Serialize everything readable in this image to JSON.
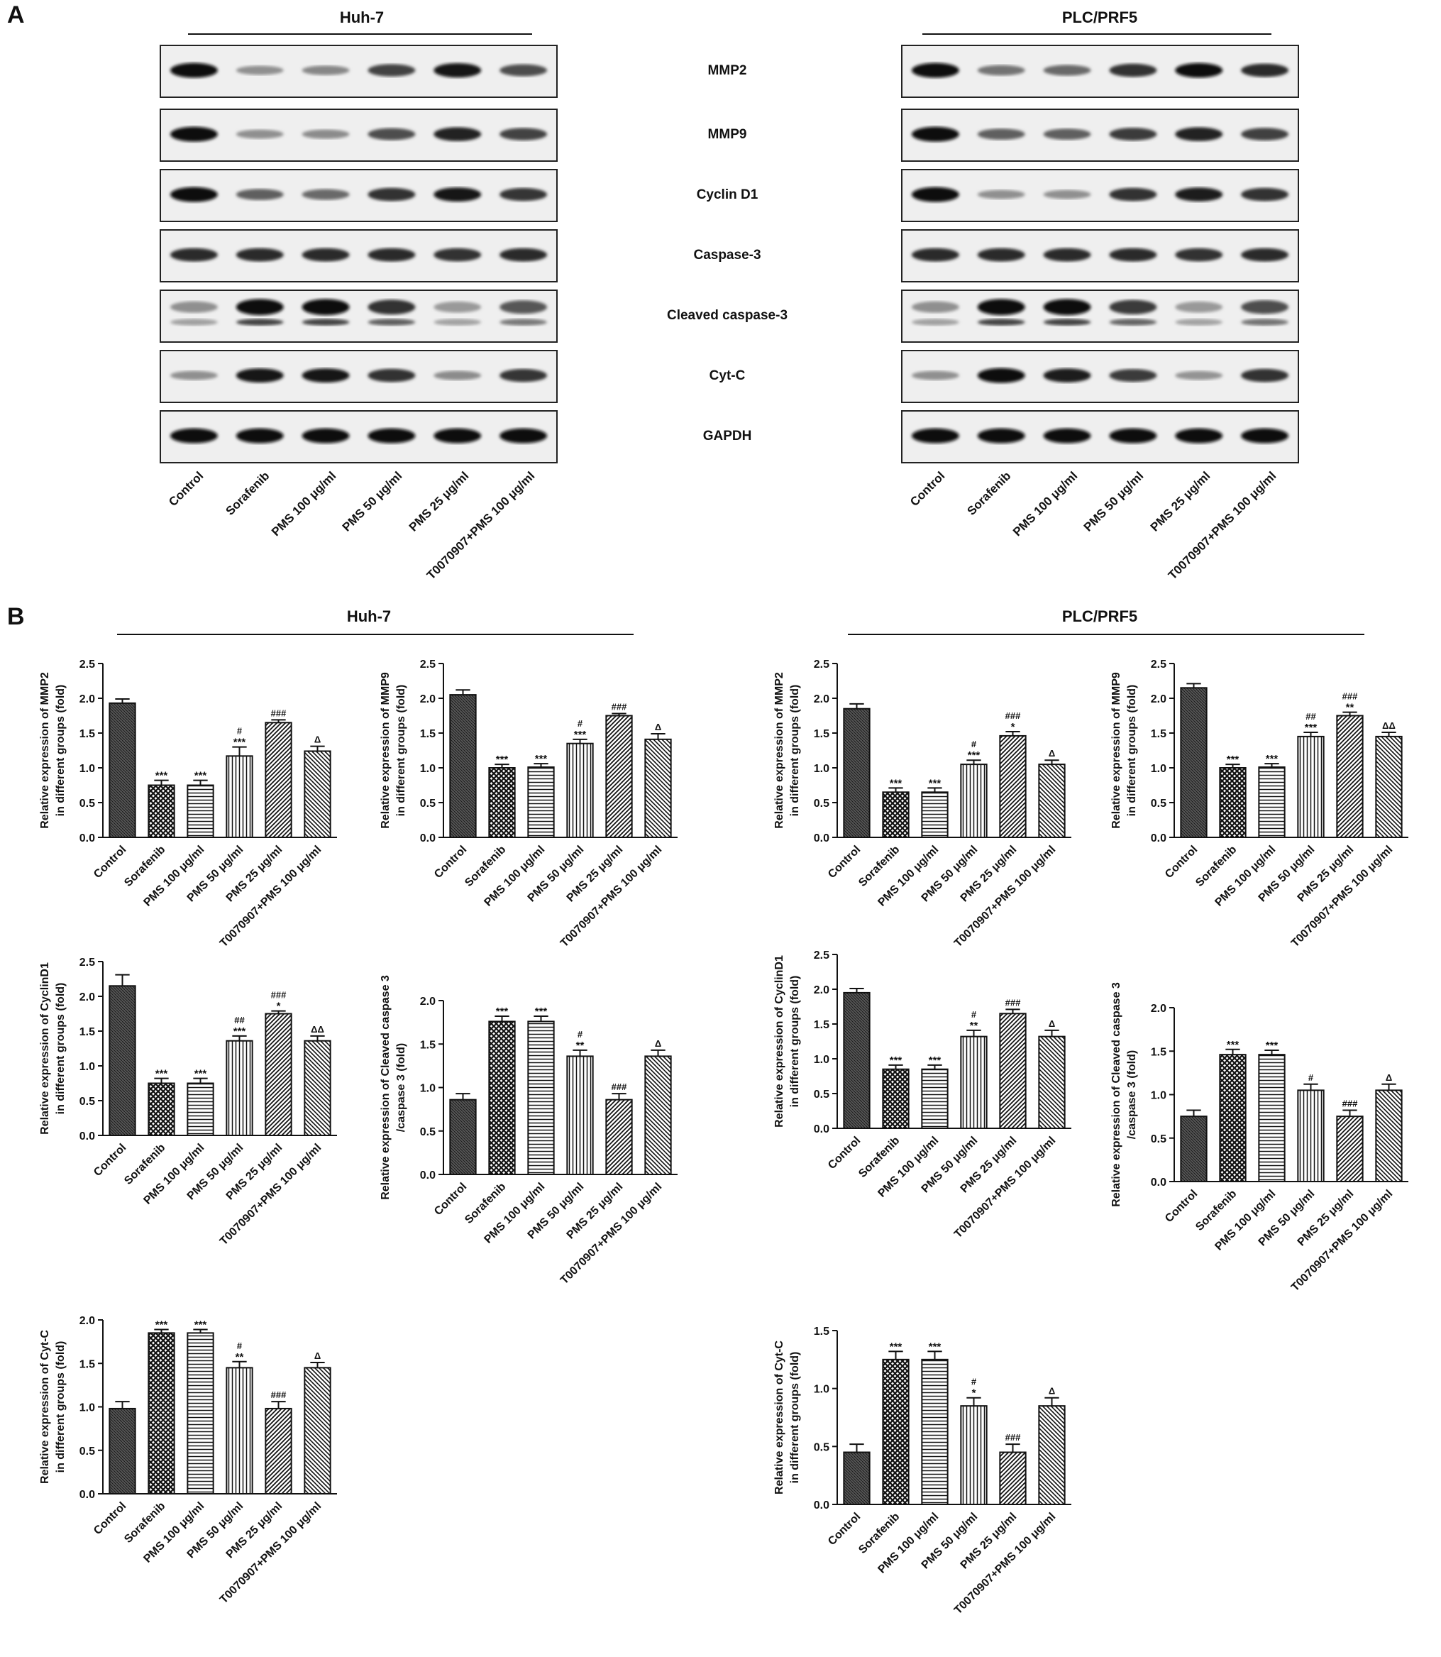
{
  "panel_a": {
    "letter": "A",
    "groups": [
      {
        "name": "Huh-7",
        "blots": [
          {
            "bands": [
              1.0,
              0.3,
              0.35,
              0.7,
              0.95,
              0.65
            ],
            "double": false
          },
          {
            "bands": [
              1.0,
              0.3,
              0.32,
              0.65,
              0.88,
              0.7
            ],
            "double": false
          },
          {
            "bands": [
              1.0,
              0.55,
              0.5,
              0.8,
              0.92,
              0.78
            ],
            "double": false
          },
          {
            "bands": [
              0.82,
              0.82,
              0.82,
              0.82,
              0.8,
              0.82
            ],
            "double": false
          },
          {
            "bands": [
              0.3,
              1.0,
              1.0,
              0.8,
              0.25,
              0.6
            ],
            "double": true
          },
          {
            "bands": [
              0.3,
              0.92,
              0.92,
              0.8,
              0.32,
              0.78
            ],
            "double": false
          },
          {
            "bands": [
              1.0,
              1.0,
              1.0,
              1.0,
              1.0,
              1.0
            ],
            "double": false
          }
        ]
      },
      {
        "name": "PLC/PRF5",
        "blots": [
          {
            "bands": [
              1.0,
              0.45,
              0.5,
              0.8,
              0.98,
              0.82
            ],
            "double": false
          },
          {
            "bands": [
              1.0,
              0.55,
              0.55,
              0.75,
              0.88,
              0.72
            ],
            "double": false
          },
          {
            "bands": [
              1.0,
              0.3,
              0.3,
              0.8,
              0.9,
              0.8
            ],
            "double": false
          },
          {
            "bands": [
              0.82,
              0.82,
              0.82,
              0.82,
              0.8,
              0.82
            ],
            "double": false
          },
          {
            "bands": [
              0.3,
              1.0,
              1.0,
              0.75,
              0.25,
              0.65
            ],
            "double": true
          },
          {
            "bands": [
              0.3,
              1.0,
              0.9,
              0.75,
              0.28,
              0.8
            ],
            "double": false
          },
          {
            "bands": [
              1.0,
              1.0,
              1.0,
              1.0,
              1.0,
              1.0
            ],
            "double": false
          }
        ]
      }
    ],
    "proteins": [
      "MMP2",
      "MMP9",
      "Cyclin D1",
      "Caspase-3",
      "Cleaved caspase-3",
      "Cyt-C",
      "GAPDH"
    ],
    "lanes": [
      "Control",
      "Sorafenib",
      "PMS 100 μg/ml",
      "PMS 50 μg/ml",
      "PMS 25 μg/ml",
      "T0070907+PMS 100 μg/ml"
    ]
  },
  "panel_b": {
    "letter": "B",
    "group_titles": [
      "Huh-7",
      "PLC/PRF5"
    ]
  },
  "chart_data": [
    {
      "type": "bar",
      "group": "Huh-7",
      "categories": [
        "Control",
        "Sorafenib",
        "PMS 100 μg/ml",
        "PMS 50 μg/ml",
        "PMS 25 μg/ml",
        "T0070907+PMS 100 μg/ml"
      ],
      "values": [
        1.93,
        0.75,
        0.75,
        1.17,
        1.65,
        1.24
      ],
      "errors": [
        0.06,
        0.07,
        0.07,
        0.13,
        0.04,
        0.07
      ],
      "sig_top": [
        "",
        "",
        "",
        "#",
        "###",
        "Δ"
      ],
      "sig_bottom": [
        "",
        "***",
        "***",
        "***",
        "",
        ""
      ],
      "ylabel": [
        "Relative expression of MMP2",
        "in different groups (fold)"
      ],
      "ylim": [
        0,
        2.5
      ],
      "yticks": [
        "0.0",
        "0.5",
        "1.0",
        "1.5",
        "2.0",
        "2.5"
      ]
    },
    {
      "type": "bar",
      "group": "Huh-7",
      "categories": [
        "Control",
        "Sorafenib",
        "PMS 100 μg/ml",
        "PMS 50 μg/ml",
        "PMS 25 μg/ml",
        "T0070907+PMS 100 μg/ml"
      ],
      "values": [
        2.05,
        1.0,
        1.01,
        1.35,
        1.75,
        1.41
      ],
      "errors": [
        0.07,
        0.05,
        0.05,
        0.06,
        0.03,
        0.08
      ],
      "sig_top": [
        "",
        "",
        "",
        "#",
        "###",
        "Δ"
      ],
      "sig_bottom": [
        "",
        "***",
        "***",
        "***",
        "",
        ""
      ],
      "ylabel": [
        "Relative expression of MMP9",
        "in different groups (fold)"
      ],
      "ylim": [
        0,
        2.5
      ],
      "yticks": [
        "0.0",
        "0.5",
        "1.0",
        "1.5",
        "2.0",
        "2.5"
      ]
    },
    {
      "type": "bar",
      "group": "PLC/PRF5",
      "categories": [
        "Control",
        "Sorafenib",
        "PMS 100 μg/ml",
        "PMS 50 μg/ml",
        "PMS 25 μg/ml",
        "T0070907+PMS 100 μg/ml"
      ],
      "values": [
        1.85,
        0.65,
        0.65,
        1.05,
        1.46,
        1.05
      ],
      "errors": [
        0.07,
        0.06,
        0.06,
        0.06,
        0.06,
        0.06
      ],
      "sig_top": [
        "",
        "",
        "",
        "#",
        "###",
        "Δ"
      ],
      "sig_bottom": [
        "",
        "***",
        "***",
        "***",
        "*",
        ""
      ],
      "ylabel": [
        "Relative expression of MMP2",
        "in different groups (fold)"
      ],
      "ylim": [
        0,
        2.5
      ],
      "yticks": [
        "0.0",
        "0.5",
        "1.0",
        "1.5",
        "2.0",
        "2.5"
      ]
    },
    {
      "type": "bar",
      "group": "PLC/PRF5",
      "categories": [
        "Control",
        "Sorafenib",
        "PMS 100 μg/ml",
        "PMS 50 μg/ml",
        "PMS 25 μg/ml",
        "T0070907+PMS 100 μg/ml"
      ],
      "values": [
        2.15,
        1.0,
        1.01,
        1.45,
        1.75,
        1.45
      ],
      "errors": [
        0.06,
        0.05,
        0.05,
        0.06,
        0.05,
        0.06
      ],
      "sig_top": [
        "",
        "",
        "",
        "##",
        "###",
        "ΔΔ"
      ],
      "sig_bottom": [
        "",
        "***",
        "***",
        "***",
        "**",
        ""
      ],
      "ylabel": [
        "Relative expression of MMP9",
        "in different groups (fold)"
      ],
      "ylim": [
        0,
        2.5
      ],
      "yticks": [
        "0.0",
        "0.5",
        "1.0",
        "1.5",
        "2.0",
        "2.5"
      ]
    },
    {
      "type": "bar",
      "group": "Huh-7",
      "categories": [
        "Control",
        "Sorafenib",
        "PMS 100 μg/ml",
        "PMS 50 μg/ml",
        "PMS 25 μg/ml",
        "T0070907+PMS 100 μg/ml"
      ],
      "values": [
        2.15,
        0.75,
        0.75,
        1.36,
        1.75,
        1.36
      ],
      "errors": [
        0.16,
        0.07,
        0.07,
        0.07,
        0.04,
        0.07
      ],
      "sig_top": [
        "",
        "",
        "",
        "##",
        "###",
        "ΔΔ"
      ],
      "sig_bottom": [
        "",
        "***",
        "***",
        "***",
        "*",
        ""
      ],
      "ylabel": [
        "Relative expression of CyclinD1",
        "in different groups (fold)"
      ],
      "ylim": [
        0,
        2.5
      ],
      "yticks": [
        "0.0",
        "0.5",
        "1.0",
        "1.5",
        "2.0",
        "2.5"
      ]
    },
    {
      "type": "bar",
      "group": "Huh-7",
      "categories": [
        "Control",
        "Sorafenib",
        "PMS 100 μg/ml",
        "PMS 50 μg/ml",
        "PMS 25 μg/ml",
        "T0070907+PMS 100 μg/ml"
      ],
      "values": [
        0.86,
        1.76,
        1.76,
        1.36,
        0.86,
        1.36
      ],
      "errors": [
        0.07,
        0.06,
        0.06,
        0.07,
        0.07,
        0.07
      ],
      "sig_top": [
        "",
        "",
        "",
        "#",
        "###",
        "Δ"
      ],
      "sig_bottom": [
        "",
        "***",
        "***",
        "**",
        "",
        ""
      ],
      "ylabel": [
        "Relative expression of Cleaved caspase 3",
        "/caspase 3 (fold)"
      ],
      "ylim": [
        0,
        2.0
      ],
      "yticks": [
        "0.0",
        "0.5",
        "1.0",
        "1.5",
        "2.0"
      ]
    },
    {
      "type": "bar",
      "group": "PLC/PRF5",
      "categories": [
        "Control",
        "Sorafenib",
        "PMS 100 μg/ml",
        "PMS 50 μg/ml",
        "PMS 25 μg/ml",
        "T0070907+PMS 100 μg/ml"
      ],
      "values": [
        1.95,
        0.85,
        0.85,
        1.32,
        1.65,
        1.32
      ],
      "errors": [
        0.06,
        0.06,
        0.06,
        0.09,
        0.06,
        0.09
      ],
      "sig_top": [
        "",
        "",
        "",
        "#",
        "###",
        "Δ"
      ],
      "sig_bottom": [
        "",
        "***",
        "***",
        "**",
        "",
        ""
      ],
      "ylabel": [
        "Relative expression of CyclinD1",
        "in different groups (fold)"
      ],
      "ylim": [
        0,
        2.5
      ],
      "yticks": [
        "0.0",
        "0.5",
        "1.0",
        "1.5",
        "2.0",
        "2.5"
      ]
    },
    {
      "type": "bar",
      "group": "PLC/PRF5",
      "categories": [
        "Control",
        "Sorafenib",
        "PMS 100 μg/ml",
        "PMS 50 μg/ml",
        "PMS 25 μg/ml",
        "T0070907+PMS 100 μg/ml"
      ],
      "values": [
        0.75,
        1.46,
        1.46,
        1.05,
        0.75,
        1.05
      ],
      "errors": [
        0.07,
        0.06,
        0.05,
        0.07,
        0.07,
        0.07
      ],
      "sig_top": [
        "",
        "",
        "",
        "#",
        "###",
        "Δ"
      ],
      "sig_bottom": [
        "",
        "***",
        "***",
        "",
        "",
        ""
      ],
      "ylabel": [
        "Relative expression of Cleaved caspase 3",
        "/caspase 3 (fold)"
      ],
      "ylim": [
        0,
        2.0
      ],
      "yticks": [
        "0.0",
        "0.5",
        "1.0",
        "1.5",
        "2.0"
      ]
    },
    {
      "type": "bar",
      "group": "Huh-7",
      "categories": [
        "Control",
        "Sorafenib",
        "PMS 100 μg/ml",
        "PMS 50 μg/ml",
        "PMS 25 μg/ml",
        "T0070907+PMS 100 μg/ml"
      ],
      "values": [
        0.98,
        1.85,
        1.85,
        1.45,
        0.98,
        1.45
      ],
      "errors": [
        0.08,
        0.04,
        0.04,
        0.07,
        0.08,
        0.06
      ],
      "sig_top": [
        "",
        "",
        "",
        "#",
        "###",
        "Δ"
      ],
      "sig_bottom": [
        "",
        "***",
        "***",
        "**",
        "",
        ""
      ],
      "ylabel": [
        "Relative expression of Cyt-C",
        "in different groups (fold)"
      ],
      "ylim": [
        0,
        2.0
      ],
      "yticks": [
        "0.0",
        "0.5",
        "1.0",
        "1.5",
        "2.0"
      ]
    },
    {
      "type": "bar",
      "group": "PLC/PRF5",
      "categories": [
        "Control",
        "Sorafenib",
        "PMS 100 μg/ml",
        "PMS 50 μg/ml",
        "PMS 25 μg/ml",
        "T0070907+PMS 100 μg/ml"
      ],
      "values": [
        0.45,
        1.25,
        1.25,
        0.85,
        0.45,
        0.85
      ],
      "errors": [
        0.07,
        0.07,
        0.07,
        0.07,
        0.07,
        0.07
      ],
      "sig_top": [
        "",
        "",
        "",
        "#",
        "###",
        "Δ"
      ],
      "sig_bottom": [
        "",
        "***",
        "***",
        "*",
        "",
        ""
      ],
      "ylabel": [
        "Relative expression of Cyt-C",
        "in different groups (fold)"
      ],
      "ylim": [
        0,
        1.5
      ],
      "yticks": [
        "0.0",
        "0.5",
        "1.0",
        "1.5"
      ]
    }
  ]
}
